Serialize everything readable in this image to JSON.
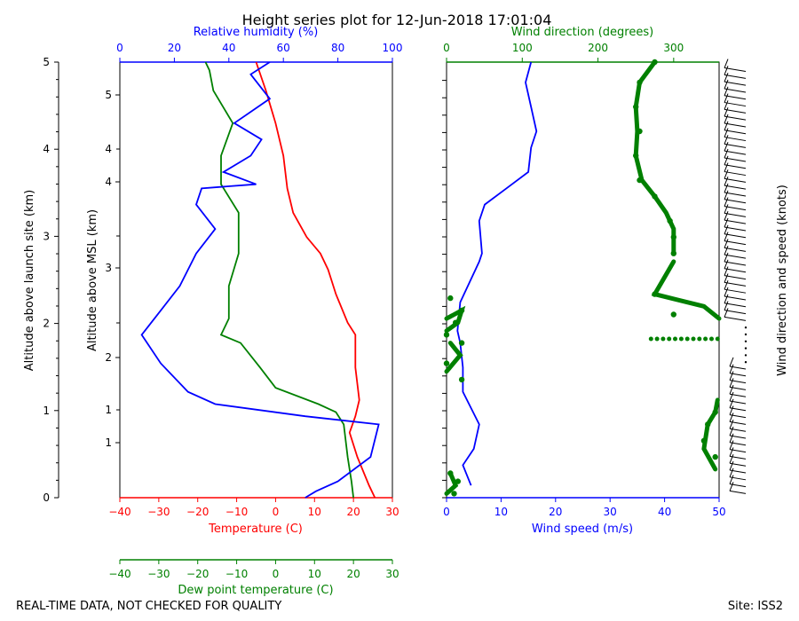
{
  "title": "Height series plot for 12-Jun-2018 17:01:04",
  "footer": {
    "left_note": "REAL-TIME DATA, NOT CHECKED FOR QUALITY",
    "site": "Site: ISS2"
  },
  "colors": {
    "temperature": "#ff0000",
    "dewpoint": "#008000",
    "humidity": "#0000ff",
    "wind_speed": "#0000ff",
    "wind_dir": "#008000",
    "barbs": "#000000"
  },
  "chart_data": [
    {
      "type": "line",
      "panel": "thermo",
      "labels": {
        "outer_y": "Altitude above launch site (km)",
        "inner_y": "Altitude above MSL (km)",
        "top_x": "Relative humidity (%)",
        "bottom_x": "Temperature (C)",
        "extra_x": "Dew point temperature (C)"
      },
      "outer_y_ticks": [
        "0",
        "1",
        "2",
        "3",
        "4",
        "5"
      ],
      "inner_y_ticks": [
        "1",
        "1",
        "2",
        "3",
        "4",
        "4",
        "5"
      ],
      "humidity_ticks": [
        "0",
        "20",
        "40",
        "60",
        "80",
        "100"
      ],
      "temp_ticks": [
        "−40",
        "−30",
        "−20",
        "−10",
        "0",
        "10",
        "20",
        "30"
      ],
      "dew_ticks": [
        "−40",
        "−30",
        "−20",
        "−10",
        "0",
        "10",
        "20",
        "30"
      ],
      "series": [
        {
          "name": "Temperature",
          "color": "#ff0000",
          "points": [
            [
              25.5,
              0.0
            ],
            [
              24.0,
              0.15
            ],
            [
              21.0,
              0.5
            ],
            [
              19.0,
              0.8
            ],
            [
              20.5,
              1.0
            ],
            [
              21.5,
              1.2
            ],
            [
              20.5,
              1.6
            ],
            [
              20.5,
              2.0
            ],
            [
              18.5,
              2.15
            ],
            [
              15.5,
              2.5
            ],
            [
              13.5,
              2.8
            ],
            [
              11.5,
              3.0
            ],
            [
              8.0,
              3.2
            ],
            [
              4.5,
              3.5
            ],
            [
              3.0,
              3.8
            ],
            [
              2.0,
              4.2
            ],
            [
              0.0,
              4.6
            ],
            [
              -2.5,
              5.0
            ],
            [
              -5.0,
              5.35
            ]
          ]
        },
        {
          "name": "Dew point",
          "color": "#008000",
          "points": [
            [
              20.0,
              0.0
            ],
            [
              19.5,
              0.2
            ],
            [
              18.5,
              0.5
            ],
            [
              17.5,
              0.9
            ],
            [
              15.5,
              1.05
            ],
            [
              11.0,
              1.15
            ],
            [
              0.0,
              1.35
            ],
            [
              -4.0,
              1.6
            ],
            [
              -9.0,
              1.9
            ],
            [
              -14.0,
              2.0
            ],
            [
              -12.0,
              2.2
            ],
            [
              -12.0,
              2.6
            ],
            [
              -9.5,
              3.0
            ],
            [
              -9.5,
              3.5
            ],
            [
              -14.0,
              3.85
            ],
            [
              -14.0,
              4.2
            ],
            [
              -11.0,
              4.6
            ],
            [
              -16.0,
              5.0
            ],
            [
              -17.0,
              5.25
            ],
            [
              -18.0,
              5.35
            ]
          ]
        },
        {
          "name": "Relative humidity",
          "color": "#0000ff",
          "points": [
            [
              68,
              0.0
            ],
            [
              72,
              0.08
            ],
            [
              80,
              0.2
            ],
            [
              92,
              0.5
            ],
            [
              95,
              0.9
            ],
            [
              68,
              1.0
            ],
            [
              35,
              1.15
            ],
            [
              25,
              1.3
            ],
            [
              15,
              1.65
            ],
            [
              8,
              2.0
            ],
            [
              15,
              2.3
            ],
            [
              22,
              2.6
            ],
            [
              28,
              3.0
            ],
            [
              35,
              3.3
            ],
            [
              28,
              3.6
            ],
            [
              30,
              3.8
            ],
            [
              50,
              3.85
            ],
            [
              38,
              4.0
            ],
            [
              48,
              4.2
            ],
            [
              52,
              4.4
            ],
            [
              42,
              4.6
            ],
            [
              55,
              4.9
            ],
            [
              48,
              5.2
            ],
            [
              55,
              5.35
            ]
          ]
        }
      ]
    },
    {
      "type": "scatter",
      "panel": "wind",
      "labels": {
        "top_x": "Wind direction (degrees)",
        "bottom_x": "Wind speed (m/s)",
        "barb_axis": "Wind direction and speed (knots)"
      },
      "dir_ticks": [
        "0",
        "100",
        "200",
        "300"
      ],
      "speed_ticks": [
        "0",
        "10",
        "20",
        "30",
        "40",
        "50"
      ],
      "series": [
        {
          "name": "Wind speed",
          "color": "#0000ff",
          "points": [
            [
              4.5,
              0.15
            ],
            [
              3.0,
              0.4
            ],
            [
              5.0,
              0.6
            ],
            [
              6.0,
              0.9
            ],
            [
              4.5,
              1.1
            ],
            [
              3.0,
              1.3
            ],
            [
              3.0,
              1.6
            ],
            [
              2.5,
              1.9
            ],
            [
              2.0,
              2.05
            ],
            [
              2.5,
              2.4
            ],
            [
              6.0,
              2.9
            ],
            [
              6.5,
              3.0
            ],
            [
              6.0,
              3.4
            ],
            [
              7.0,
              3.6
            ],
            [
              11.0,
              3.8
            ],
            [
              15.0,
              4.0
            ],
            [
              15.5,
              4.3
            ],
            [
              16.5,
              4.5
            ],
            [
              15.5,
              4.8
            ],
            [
              14.5,
              5.1
            ],
            [
              15.5,
              5.35
            ]
          ]
        },
        {
          "name": "Wind direction",
          "color": "#008000",
          "points": [
            [
              10,
              0.05
            ],
            [
              15,
              0.2
            ],
            [
              5,
              0.3
            ],
            [
              355,
              0.5
            ],
            [
              340,
              0.7
            ],
            [
              345,
              0.9
            ],
            [
              355,
              1.05
            ],
            [
              20,
              1.45
            ],
            [
              0,
              1.65
            ],
            [
              20,
              1.9
            ],
            [
              0,
              2.0
            ],
            [
              12,
              2.15
            ],
            [
              20,
              2.3
            ],
            [
              5,
              2.45
            ],
            [
              300,
              2.25
            ],
            [
              275,
              2.5
            ],
            [
              300,
              3.0
            ],
            [
              300,
              3.2
            ],
            [
              295,
              3.4
            ],
            [
              275,
              3.7
            ],
            [
              255,
              3.9
            ],
            [
              250,
              4.2
            ],
            [
              255,
              4.5
            ],
            [
              250,
              4.8
            ],
            [
              255,
              5.1
            ],
            [
              275,
              5.35
            ]
          ]
        }
      ]
    }
  ]
}
